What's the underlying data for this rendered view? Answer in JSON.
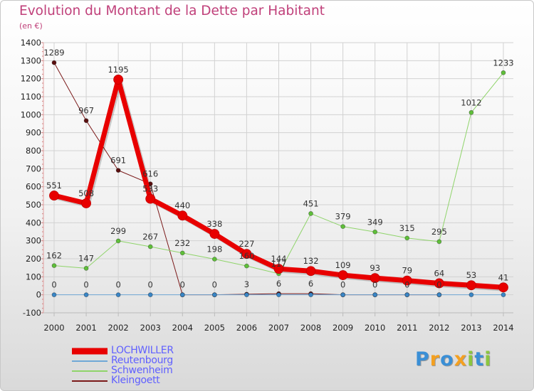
{
  "chart_data": {
    "type": "line",
    "title": "Evolution du Montant de la Dette par Habitant",
    "subtitle": "(en €)",
    "xlabel": "",
    "ylabel": "",
    "categories": [
      "2000",
      "2001",
      "2002",
      "2003",
      "2004",
      "2005",
      "2006",
      "2007",
      "2008",
      "2009",
      "2010",
      "2011",
      "2012",
      "2013",
      "2014"
    ],
    "ylim": [
      -100,
      1400
    ],
    "yticks": [
      -100,
      0,
      100,
      200,
      300,
      400,
      500,
      600,
      700,
      800,
      900,
      1000,
      1100,
      1200,
      1300,
      1400
    ],
    "grid": true,
    "legend_position": "bottom-left",
    "series": [
      {
        "name": "Kleingoett",
        "color": "#7b1a1a",
        "point_color": "#5a0f0f",
        "width": 1,
        "values": [
          1289,
          967,
          691,
          616,
          0,
          0,
          3,
          6,
          6,
          0,
          0,
          0,
          0,
          null,
          null
        ],
        "labels": [
          "1289",
          "967",
          "691",
          "616",
          "0",
          "0",
          "3",
          "6",
          "6",
          "0",
          "0",
          "0",
          "0",
          "",
          ""
        ]
      },
      {
        "name": "Schwenheim",
        "color": "#8fd46a",
        "point_color": "#5fbf3a",
        "width": 1,
        "values": [
          162,
          147,
          299,
          267,
          232,
          198,
          160,
          117,
          451,
          379,
          349,
          315,
          295,
          1012,
          1233
        ],
        "labels": [
          "162",
          "147",
          "299",
          "267",
          "232",
          "198",
          "160",
          "117",
          "451",
          "379",
          "349",
          "315",
          "295",
          "1012",
          "1233"
        ]
      },
      {
        "name": "Reutenbourg",
        "color": "#6fa8d6",
        "point_color": "#3a86c6",
        "width": 1,
        "values": [
          0,
          0,
          0,
          0,
          0,
          0,
          0,
          0,
          0,
          0,
          0,
          0,
          0,
          0,
          0
        ],
        "labels": [
          "0",
          "0",
          "0",
          "0",
          "",
          "",
          "",
          "",
          "",
          "",
          "",
          "",
          "",
          "",
          ""
        ]
      },
      {
        "name": "LOCHWILLER",
        "color": "#e80000",
        "point_color": "#e80000",
        "width": 7,
        "values": [
          551,
          508,
          1195,
          533,
          440,
          338,
          227,
          144,
          132,
          109,
          93,
          79,
          64,
          53,
          41
        ],
        "labels": [
          "551",
          "508",
          "1195",
          "533",
          "440",
          "338",
          "227",
          "144",
          "132",
          "109",
          "93",
          "79",
          "64",
          "53",
          "41"
        ]
      }
    ],
    "legend": [
      {
        "name": "LOCHWILLER",
        "color": "#e80000",
        "text_color": "#6060ff",
        "width": 9
      },
      {
        "name": "Reutenbourg",
        "color": "#6fa8d6",
        "text_color": "#6060ff",
        "width": 2
      },
      {
        "name": "Schwenheim",
        "color": "#8fd46a",
        "text_color": "#6060ff",
        "width": 2
      },
      {
        "name": "Kleingoett",
        "color": "#7b1a1a",
        "text_color": "#6060ff",
        "width": 2
      }
    ]
  },
  "brand": {
    "letters": [
      "P",
      "r",
      "o",
      "x",
      "i",
      "t",
      "i"
    ],
    "colors": [
      "#3a8fd6",
      "#f4a020",
      "#3a8fd6",
      "#f4a020",
      "#8cc63f",
      "#3a8fd6",
      "#8cc63f"
    ]
  }
}
